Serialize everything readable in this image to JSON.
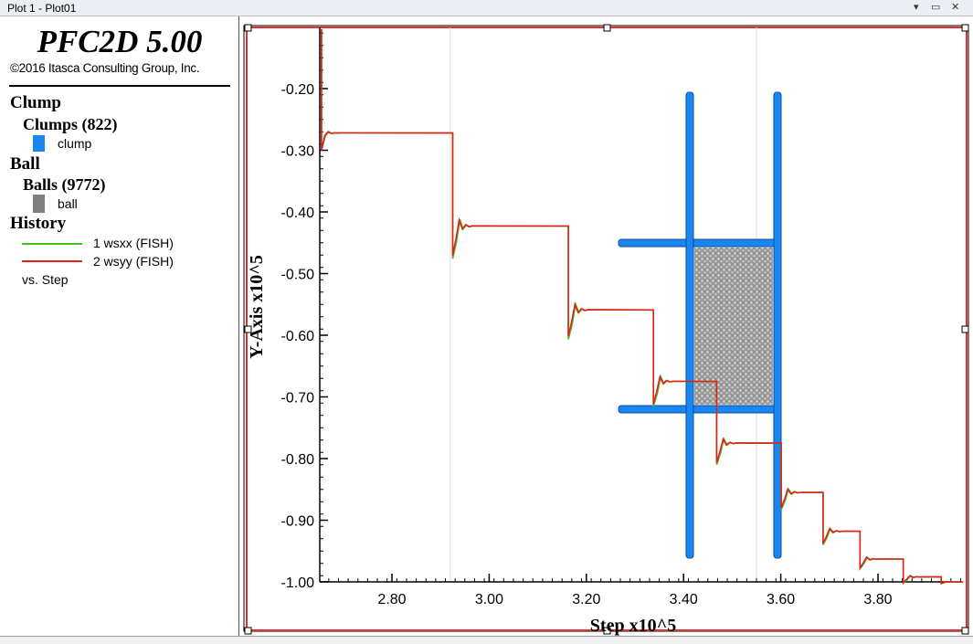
{
  "window": {
    "title": "Plot 1 - Plot01",
    "controls": [
      "▾",
      "▭",
      "✕"
    ]
  },
  "legend": {
    "brand": "PFC2D 5.00",
    "copyright": "©2016 Itasca Consulting Group, Inc.",
    "clump_heading": "Clump",
    "clumps_sub": "Clumps (822)",
    "clump_item": "clump",
    "ball_heading": "Ball",
    "balls_sub": "Balls (9772)",
    "ball_item": "ball",
    "history_heading": "History",
    "history_1": "1 wsxx (FISH)",
    "history_2": "2 wsyy (FISH)",
    "vs_step": "vs. Step"
  },
  "colors": {
    "clump": "#1a86f0",
    "ball": "#808080",
    "wsxx": "#3fc21f",
    "wsyy": "#e0201c",
    "frame": "#e03030"
  },
  "chart_data": {
    "type": "line",
    "xlabel": "Step x10^5",
    "ylabel": "Y-Axis x10^5",
    "xlim": [
      2.65,
      3.98
    ],
    "ylim": [
      -1.0,
      -0.12
    ],
    "xticks": [
      2.8,
      3.0,
      3.2,
      3.4,
      3.6,
      3.8
    ],
    "xtick_labels": [
      "2.80",
      "3.00",
      "3.20",
      "3.40",
      "3.60",
      "3.80"
    ],
    "yticks": [
      -0.2,
      -0.3,
      -0.4,
      -0.5,
      -0.6,
      -0.7,
      -0.8,
      -0.9,
      -1.0
    ],
    "ytick_labels": [
      "-0.20",
      "-0.30",
      "-0.40",
      "-0.50",
      "-0.60",
      "-0.70",
      "-0.80",
      "-0.90",
      "-1.00"
    ],
    "grid_x": [
      2.92,
      3.55
    ],
    "steps": [
      {
        "x0": 2.655,
        "x1": 2.925,
        "y": -0.272
      },
      {
        "x0": 2.925,
        "x1": 3.163,
        "y": -0.423
      },
      {
        "x0": 3.163,
        "x1": 3.338,
        "y": -0.559
      },
      {
        "x0": 3.338,
        "x1": 3.468,
        "y": -0.675
      },
      {
        "x0": 3.468,
        "x1": 3.601,
        "y": -0.775
      },
      {
        "x0": 3.601,
        "x1": 3.687,
        "y": -0.855
      },
      {
        "x0": 3.687,
        "x1": 3.763,
        "y": -0.918
      },
      {
        "x0": 3.763,
        "x1": 3.852,
        "y": -0.963
      },
      {
        "x0": 3.852,
        "x1": 3.93,
        "y": -0.992
      },
      {
        "x0": 3.93,
        "x1": 3.975,
        "y": -1.0
      }
    ],
    "series": [
      {
        "name": "1 wsxx (FISH)"
      },
      {
        "name": "2 wsyy (FISH)"
      }
    ]
  }
}
